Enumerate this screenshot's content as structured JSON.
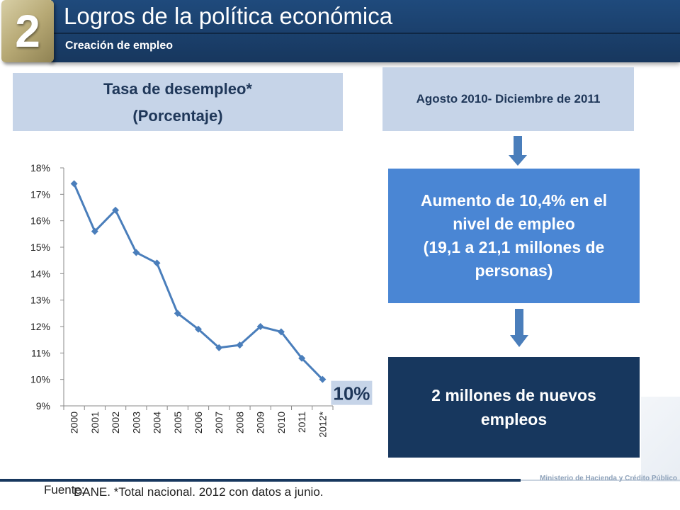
{
  "header": {
    "section_number": "2",
    "title": "Logros de la política económica",
    "subtitle": "Creación de empleo"
  },
  "chart_box": {
    "line1": "Tasa de desempleo*",
    "line2": "(Porcentaje)"
  },
  "period": "Agosto 2010- Diciembre de 2011",
  "increase": {
    "line1": "Aumento de 10,4% en el",
    "line2": "nivel de empleo",
    "line3": "(19,1 a 21,1 millones de",
    "line4": "personas)"
  },
  "jobs": {
    "line1": "2 millones de nuevos",
    "line2": "empleos"
  },
  "footer": {
    "source_label": "Fuente:",
    "source_text": "DANE. *Total nacional. 2012 con datos a junio.",
    "ministry": "Ministerio de Hacienda y Crédito Público"
  },
  "colors": {
    "header": "#17375e",
    "badge": "#b7a975",
    "light_box": "#c6d4e8",
    "blue_box": "#4a86d4",
    "dark_box": "#17375e",
    "line": "#4a7ebb",
    "arrow": "#4a7ebb"
  },
  "chart_data": {
    "type": "line",
    "categories": [
      "2000",
      "2001",
      "2002",
      "2003",
      "2004",
      "2005",
      "2006",
      "2007",
      "2008",
      "2009",
      "2010",
      "2011",
      "2012*"
    ],
    "series": [
      {
        "values": [
          17.4,
          15.6,
          16.4,
          14.8,
          14.4,
          12.5,
          11.9,
          11.2,
          11.3,
          12.0,
          11.8,
          10.8,
          10.0
        ]
      }
    ],
    "ylim": [
      9,
      18
    ],
    "yticks": [
      "9%",
      "10%",
      "11%",
      "12%",
      "13%",
      "14%",
      "15%",
      "16%",
      "17%",
      "18%"
    ],
    "annotation": "10%",
    "grid": false,
    "legend": "none"
  }
}
